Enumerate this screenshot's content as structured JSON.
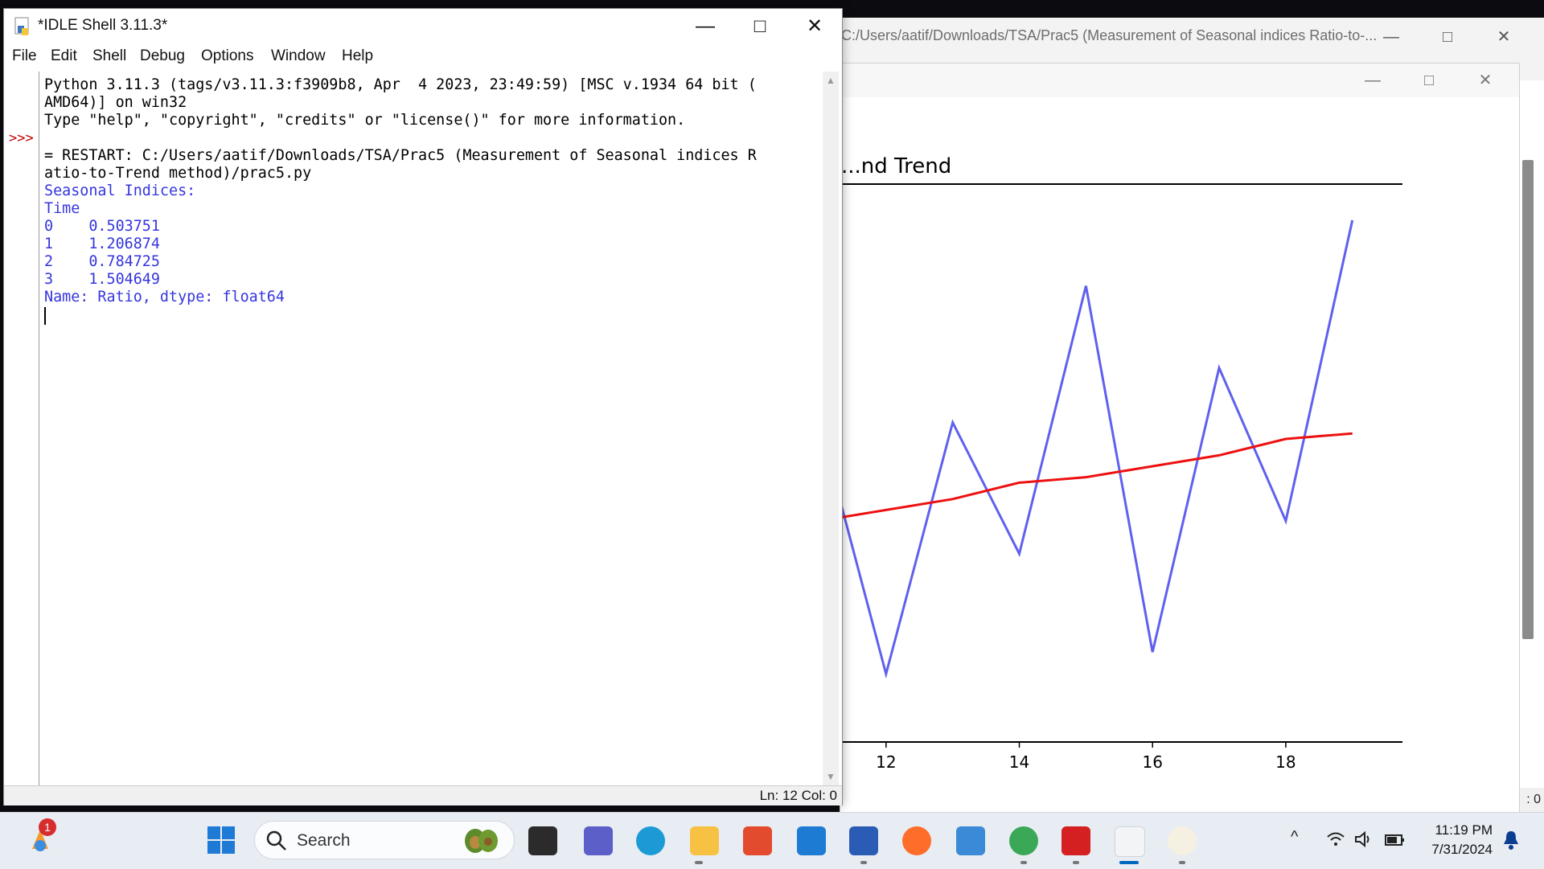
{
  "editor_window": {
    "title": "C:/Users/aatif/Downloads/TSA/Prac5 (Measurement of Seasonal indices Ratio-to-...",
    "status_fragment": ": 0"
  },
  "figure_window": {
    "chart_data": {
      "type": "line",
      "title": "...nd Trend",
      "x_ticks": [
        "12",
        "14",
        "16",
        "18"
      ],
      "xlim": [
        11.0,
        19.8
      ],
      "ylim": [
        0,
        1
      ],
      "series": [
        {
          "color": "#6060ee",
          "x": [
            11,
            12,
            13,
            14,
            15,
            16,
            17,
            18,
            19
          ],
          "y": [
            0.58,
            0.12,
            0.58,
            0.34,
            0.83,
            0.16,
            0.68,
            0.4,
            0.95
          ]
        },
        {
          "color": "#ee1010",
          "x": [
            11,
            12,
            13,
            14,
            15,
            16,
            17,
            18,
            19
          ],
          "y": [
            0.4,
            0.42,
            0.44,
            0.47,
            0.48,
            0.5,
            0.52,
            0.55,
            0.56
          ]
        }
      ]
    }
  },
  "idle": {
    "title": "*IDLE Shell 3.11.3*",
    "menu": [
      "File",
      "Edit",
      "Shell",
      "Debug",
      "Options",
      "Window",
      "Help"
    ],
    "prompt": ">>>",
    "lines": [
      {
        "text": "Python 3.11.3 (tags/v3.11.3:f3909b8, Apr  4 2023, 23:49:59) [MSC v.1934 64 bit (",
        "kind": "normal"
      },
      {
        "text": "AMD64)] on win32",
        "kind": "normal"
      },
      {
        "text": "Type \"help\", \"copyright\", \"credits\" or \"license()\" for more information.",
        "kind": "normal"
      },
      {
        "text": "",
        "kind": "normal"
      },
      {
        "text": "= RESTART: C:/Users/aatif/Downloads/TSA/Prac5 (Measurement of Seasonal indices R",
        "kind": "normal"
      },
      {
        "text": "atio-to-Trend method)/prac5.py",
        "kind": "normal"
      },
      {
        "text": "Seasonal Indices:",
        "kind": "output"
      },
      {
        "text": "Time",
        "kind": "output"
      },
      {
        "text": "0    0.503751",
        "kind": "output"
      },
      {
        "text": "1    1.206874",
        "kind": "output"
      },
      {
        "text": "2    0.784725",
        "kind": "output"
      },
      {
        "text": "3    1.504649",
        "kind": "output"
      },
      {
        "text": "Name: Ratio, dtype: float64",
        "kind": "output"
      }
    ],
    "status": "Ln: 12  Col: 0"
  },
  "taskbar": {
    "search_label": "Search",
    "notification_count": "1",
    "time": "11:19 PM",
    "date": "7/31/2024"
  }
}
